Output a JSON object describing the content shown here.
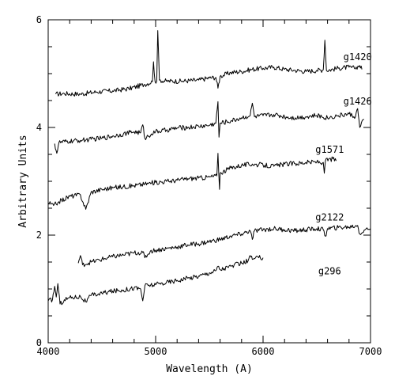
{
  "chart_data": {
    "type": "line",
    "title": "",
    "xlabel": "Wavelength (A)",
    "ylabel": "Arbitrary Units",
    "xlim": [
      4000,
      7000
    ],
    "ylim": [
      0,
      6
    ],
    "xticks": [
      4000,
      5000,
      6000,
      7000
    ],
    "yticks": [
      0,
      2,
      4,
      6
    ],
    "grid": false,
    "legend": "none",
    "line_color": "#000000",
    "series": [
      {
        "name": "g1420",
        "label_x": 6880,
        "label_y": 5.25,
        "points": [
          [
            4070,
            4.62
          ],
          [
            4150,
            4.63
          ],
          [
            4300,
            4.62
          ],
          [
            4450,
            4.66
          ],
          [
            4600,
            4.68
          ],
          [
            4750,
            4.72
          ],
          [
            4900,
            4.8
          ],
          [
            4970,
            4.85
          ],
          [
            4980,
            5.22
          ],
          [
            4995,
            4.85
          ],
          [
            5010,
            4.86
          ],
          [
            5020,
            5.8
          ],
          [
            5035,
            4.88
          ],
          [
            5100,
            4.86
          ],
          [
            5250,
            4.86
          ],
          [
            5400,
            4.88
          ],
          [
            5500,
            4.92
          ],
          [
            5560,
            4.93
          ],
          [
            5580,
            4.73
          ],
          [
            5600,
            4.95
          ],
          [
            5700,
            5.02
          ],
          [
            5800,
            5.04
          ],
          [
            5900,
            5.08
          ],
          [
            6000,
            5.1
          ],
          [
            6100,
            5.12
          ],
          [
            6200,
            5.08
          ],
          [
            6300,
            5.06
          ],
          [
            6400,
            5.04
          ],
          [
            6500,
            5.06
          ],
          [
            6560,
            5.07
          ],
          [
            6575,
            5.62
          ],
          [
            6590,
            5.06
          ],
          [
            6700,
            5.1
          ],
          [
            6800,
            5.12
          ],
          [
            6850,
            5.1
          ],
          [
            6900,
            5.15
          ],
          [
            6920,
            5.08
          ]
        ]
      },
      {
        "name": "g1426",
        "label_x": 6880,
        "label_y": 4.43,
        "points": [
          [
            4060,
            3.7
          ],
          [
            4080,
            3.52
          ],
          [
            4100,
            3.72
          ],
          [
            4200,
            3.74
          ],
          [
            4300,
            3.76
          ],
          [
            4400,
            3.78
          ],
          [
            4500,
            3.8
          ],
          [
            4600,
            3.84
          ],
          [
            4700,
            3.88
          ],
          [
            4800,
            3.92
          ],
          [
            4860,
            3.9
          ],
          [
            4880,
            4.05
          ],
          [
            4900,
            3.8
          ],
          [
            4960,
            3.88
          ],
          [
            5000,
            3.92
          ],
          [
            5100,
            3.95
          ],
          [
            5200,
            3.99
          ],
          [
            5300,
            4.0
          ],
          [
            5400,
            4.02
          ],
          [
            5500,
            4.04
          ],
          [
            5560,
            4.08
          ],
          [
            5580,
            4.48
          ],
          [
            5590,
            3.82
          ],
          [
            5600,
            4.08
          ],
          [
            5700,
            4.12
          ],
          [
            5800,
            4.18
          ],
          [
            5880,
            4.22
          ],
          [
            5900,
            4.45
          ],
          [
            5920,
            4.2
          ],
          [
            6000,
            4.22
          ],
          [
            6100,
            4.24
          ],
          [
            6200,
            4.2
          ],
          [
            6300,
            4.18
          ],
          [
            6400,
            4.2
          ],
          [
            6500,
            4.22
          ],
          [
            6600,
            4.18
          ],
          [
            6700,
            4.22
          ],
          [
            6800,
            4.25
          ],
          [
            6860,
            4.2
          ],
          [
            6880,
            4.35
          ],
          [
            6900,
            4.0
          ],
          [
            6940,
            4.15
          ]
        ]
      },
      {
        "name": "g1571",
        "label_x": 6620,
        "label_y": 3.53,
        "points": [
          [
            4000,
            2.6
          ],
          [
            4050,
            2.55
          ],
          [
            4100,
            2.62
          ],
          [
            4200,
            2.72
          ],
          [
            4300,
            2.75
          ],
          [
            4350,
            2.48
          ],
          [
            4400,
            2.8
          ],
          [
            4500,
            2.85
          ],
          [
            4600,
            2.88
          ],
          [
            4700,
            2.9
          ],
          [
            4800,
            2.92
          ],
          [
            4900,
            2.95
          ],
          [
            5000,
            2.98
          ],
          [
            5100,
            3.0
          ],
          [
            5200,
            3.02
          ],
          [
            5300,
            3.05
          ],
          [
            5400,
            3.06
          ],
          [
            5500,
            3.08
          ],
          [
            5570,
            3.1
          ],
          [
            5580,
            3.52
          ],
          [
            5595,
            2.85
          ],
          [
            5600,
            3.15
          ],
          [
            5700,
            3.25
          ],
          [
            5800,
            3.3
          ],
          [
            5900,
            3.32
          ],
          [
            6000,
            3.3
          ],
          [
            6100,
            3.28
          ],
          [
            6200,
            3.32
          ],
          [
            6300,
            3.33
          ],
          [
            6400,
            3.35
          ],
          [
            6500,
            3.36
          ],
          [
            6560,
            3.35
          ],
          [
            6570,
            3.15
          ],
          [
            6580,
            3.38
          ],
          [
            6650,
            3.42
          ],
          [
            6680,
            3.38
          ]
        ]
      },
      {
        "name": "g2122",
        "label_x": 6620,
        "label_y": 2.27,
        "points": [
          [
            4280,
            1.48
          ],
          [
            4300,
            1.62
          ],
          [
            4320,
            1.45
          ],
          [
            4400,
            1.5
          ],
          [
            4500,
            1.55
          ],
          [
            4600,
            1.6
          ],
          [
            4700,
            1.63
          ],
          [
            4800,
            1.67
          ],
          [
            4880,
            1.68
          ],
          [
            4900,
            1.58
          ],
          [
            4950,
            1.7
          ],
          [
            5000,
            1.72
          ],
          [
            5100,
            1.75
          ],
          [
            5200,
            1.78
          ],
          [
            5300,
            1.82
          ],
          [
            5400,
            1.84
          ],
          [
            5500,
            1.88
          ],
          [
            5600,
            1.92
          ],
          [
            5700,
            1.98
          ],
          [
            5800,
            2.02
          ],
          [
            5880,
            2.08
          ],
          [
            5900,
            1.92
          ],
          [
            5920,
            2.08
          ],
          [
            6000,
            2.1
          ],
          [
            6100,
            2.12
          ],
          [
            6200,
            2.1
          ],
          [
            6300,
            2.08
          ],
          [
            6400,
            2.1
          ],
          [
            6500,
            2.12
          ],
          [
            6560,
            2.1
          ],
          [
            6580,
            1.98
          ],
          [
            6600,
            2.12
          ],
          [
            6700,
            2.14
          ],
          [
            6800,
            2.15
          ],
          [
            6880,
            2.18
          ],
          [
            6900,
            2.02
          ],
          [
            6950,
            2.1
          ],
          [
            7000,
            2.12
          ]
        ]
      },
      {
        "name": "g296",
        "label_x": 6620,
        "label_y": 1.27,
        "points": [
          [
            4000,
            0.78
          ],
          [
            4040,
            0.8
          ],
          [
            4060,
            1.05
          ],
          [
            4075,
            0.85
          ],
          [
            4090,
            1.1
          ],
          [
            4110,
            0.72
          ],
          [
            4150,
            0.8
          ],
          [
            4200,
            0.84
          ],
          [
            4300,
            0.86
          ],
          [
            4350,
            0.76
          ],
          [
            4400,
            0.88
          ],
          [
            4500,
            0.92
          ],
          [
            4600,
            0.96
          ],
          [
            4700,
            0.98
          ],
          [
            4800,
            1.02
          ],
          [
            4860,
            1.0
          ],
          [
            4880,
            0.78
          ],
          [
            4900,
            1.06
          ],
          [
            5000,
            1.08
          ],
          [
            5100,
            1.12
          ],
          [
            5200,
            1.16
          ],
          [
            5300,
            1.2
          ],
          [
            5400,
            1.24
          ],
          [
            5500,
            1.3
          ],
          [
            5560,
            1.34
          ],
          [
            5580,
            1.42
          ],
          [
            5600,
            1.36
          ],
          [
            5700,
            1.42
          ],
          [
            5800,
            1.48
          ],
          [
            5860,
            1.52
          ],
          [
            5880,
            1.62
          ],
          [
            5900,
            1.55
          ],
          [
            5960,
            1.58
          ],
          [
            6000,
            1.58
          ]
        ]
      }
    ]
  }
}
